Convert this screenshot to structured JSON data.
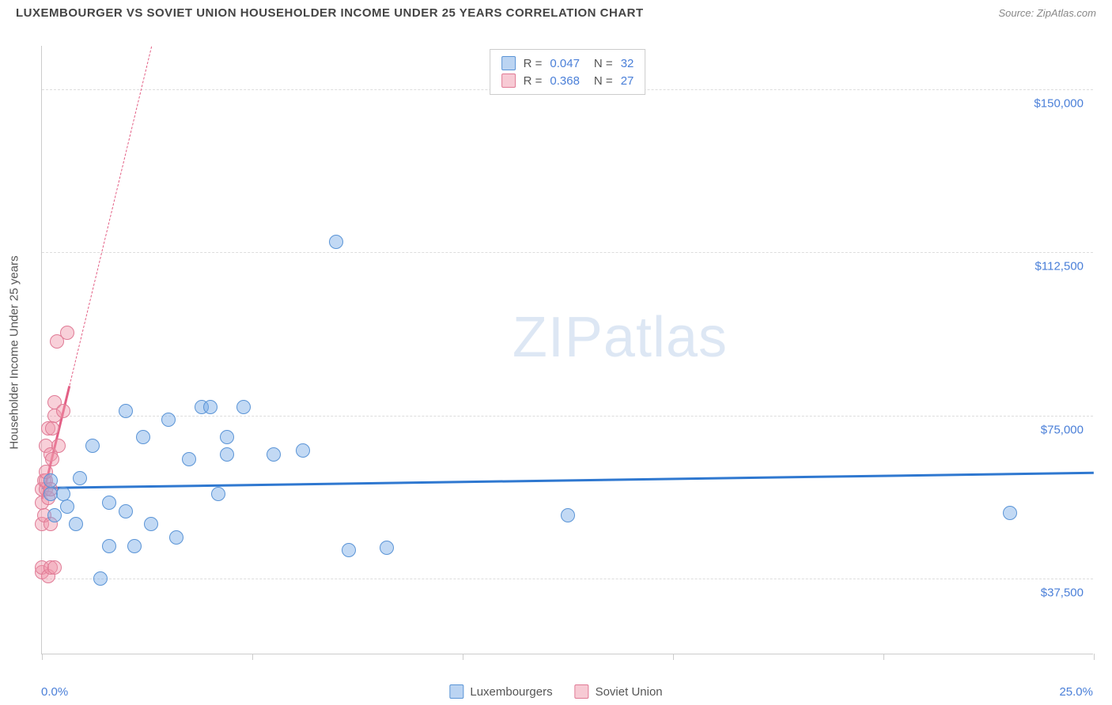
{
  "header": {
    "title": "LUXEMBOURGER VS SOVIET UNION HOUSEHOLDER INCOME UNDER 25 YEARS CORRELATION CHART",
    "source_prefix": "Source: ",
    "source_name": "ZipAtlas.com"
  },
  "chart": {
    "type": "scatter",
    "yaxis_title": "Householder Income Under 25 years",
    "xlim": [
      0,
      25
    ],
    "ylim": [
      20000,
      160000
    ],
    "xaxis_left_label": "0.0%",
    "xaxis_right_label": "25.0%",
    "ytick_values": [
      37500,
      75000,
      112500,
      150000
    ],
    "ytick_labels": [
      "$37,500",
      "$75,000",
      "$112,500",
      "$150,000"
    ],
    "xtick_positions": [
      0,
      5,
      10,
      15,
      20,
      25
    ],
    "grid_color": "#dddddd",
    "axis_color": "#cccccc",
    "background_color": "#ffffff",
    "series_blue": {
      "name": "Luxembourgers",
      "color_fill": "rgba(120,170,230,0.45)",
      "color_stroke": "#5a94d6",
      "trend_color": "#2f78d0",
      "R": "0.047",
      "N": "32",
      "points": [
        [
          0.2,
          57000
        ],
        [
          0.2,
          60000
        ],
        [
          0.3,
          52000
        ],
        [
          0.5,
          57000
        ],
        [
          0.6,
          54000
        ],
        [
          0.8,
          50000
        ],
        [
          0.9,
          60500
        ],
        [
          1.2,
          68000
        ],
        [
          1.4,
          37500
        ],
        [
          1.6,
          45000
        ],
        [
          1.6,
          55000
        ],
        [
          2.0,
          76000
        ],
        [
          2.0,
          53000
        ],
        [
          2.2,
          45000
        ],
        [
          2.4,
          70000
        ],
        [
          2.6,
          50000
        ],
        [
          3.0,
          74000
        ],
        [
          3.2,
          47000
        ],
        [
          3.5,
          65000
        ],
        [
          3.8,
          77000
        ],
        [
          4.0,
          77000
        ],
        [
          4.2,
          57000
        ],
        [
          4.4,
          66000
        ],
        [
          4.4,
          70000
        ],
        [
          4.8,
          77000
        ],
        [
          5.5,
          66000
        ],
        [
          6.2,
          67000
        ],
        [
          7.0,
          115000
        ],
        [
          7.3,
          44000
        ],
        [
          8.2,
          44500
        ],
        [
          12.5,
          52000
        ],
        [
          23.0,
          52500
        ]
      ],
      "trendline": {
        "x1": 0,
        "y1": 58500,
        "x2": 25,
        "y2": 62000
      }
    },
    "series_pink": {
      "name": "Soviet Union",
      "color_fill": "rgba(240,150,170,0.45)",
      "color_stroke": "#e07a95",
      "trend_color": "#e35f85",
      "R": "0.368",
      "N": "27",
      "points": [
        [
          0.0,
          39000
        ],
        [
          0.0,
          40000
        ],
        [
          0.0,
          50000
        ],
        [
          0.0,
          55000
        ],
        [
          0.0,
          58000
        ],
        [
          0.05,
          60000
        ],
        [
          0.05,
          52000
        ],
        [
          0.1,
          58000
        ],
        [
          0.1,
          60000
        ],
        [
          0.1,
          62000
        ],
        [
          0.1,
          68000
        ],
        [
          0.15,
          38000
        ],
        [
          0.15,
          56000
        ],
        [
          0.15,
          72000
        ],
        [
          0.2,
          40000
        ],
        [
          0.2,
          50000
        ],
        [
          0.2,
          58000
        ],
        [
          0.2,
          66000
        ],
        [
          0.25,
          65000
        ],
        [
          0.25,
          72000
        ],
        [
          0.3,
          75000
        ],
        [
          0.3,
          78000
        ],
        [
          0.3,
          40000
        ],
        [
          0.35,
          92000
        ],
        [
          0.4,
          68000
        ],
        [
          0.5,
          76000
        ],
        [
          0.6,
          94000
        ]
      ],
      "trendline_solid": {
        "x1": 0,
        "y1": 56000,
        "x2": 0.65,
        "y2": 82000
      },
      "trendline_dashed": {
        "x1": 0.65,
        "y1": 82000,
        "x2": 2.6,
        "y2": 160000
      }
    },
    "watermark": "ZIPatlas"
  },
  "legend_top": {
    "rows": [
      {
        "swatch": "blue",
        "r_label": "R =",
        "r_val": "0.047",
        "n_label": "N =",
        "n_val": "32"
      },
      {
        "swatch": "pink",
        "r_label": "R =",
        "r_val": "0.368",
        "n_label": "N =",
        "n_val": "27"
      }
    ]
  },
  "legend_bottom": {
    "items": [
      {
        "swatch": "blue",
        "label": "Luxembourgers"
      },
      {
        "swatch": "pink",
        "label": "Soviet Union"
      }
    ]
  }
}
